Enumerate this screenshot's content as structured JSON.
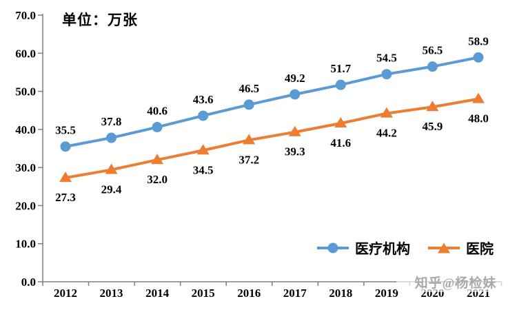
{
  "watermark": {
    "text": "知乎@杨检妹"
  },
  "chart_data": {
    "type": "line",
    "unit_label": "单位：万张",
    "categories": [
      "2012",
      "2013",
      "2014",
      "2015",
      "2016",
      "2017",
      "2018",
      "2019",
      "2020",
      "2021"
    ],
    "series": [
      {
        "name": "医疗机构",
        "color": "#5B9BD5",
        "marker": "circle",
        "label_position": "above",
        "values": [
          35.5,
          37.8,
          40.6,
          43.6,
          46.5,
          49.2,
          51.7,
          54.5,
          56.5,
          58.9
        ]
      },
      {
        "name": "医院",
        "color": "#ED7D31",
        "marker": "triangle",
        "label_position": "below",
        "values": [
          27.3,
          29.4,
          32.0,
          34.5,
          37.2,
          39.3,
          41.6,
          44.2,
          45.9,
          48.0
        ]
      }
    ],
    "ylim": [
      0,
      70
    ],
    "ytick_step": 10,
    "ytick_labels": [
      "0.0",
      "10.0",
      "20.0",
      "30.0",
      "40.0",
      "50.0",
      "60.0",
      "70.0"
    ],
    "xlabel": "",
    "ylabel": "",
    "grid": false,
    "legend_position": "inside-bottom-right",
    "axis_color": "#7f7f7f"
  }
}
